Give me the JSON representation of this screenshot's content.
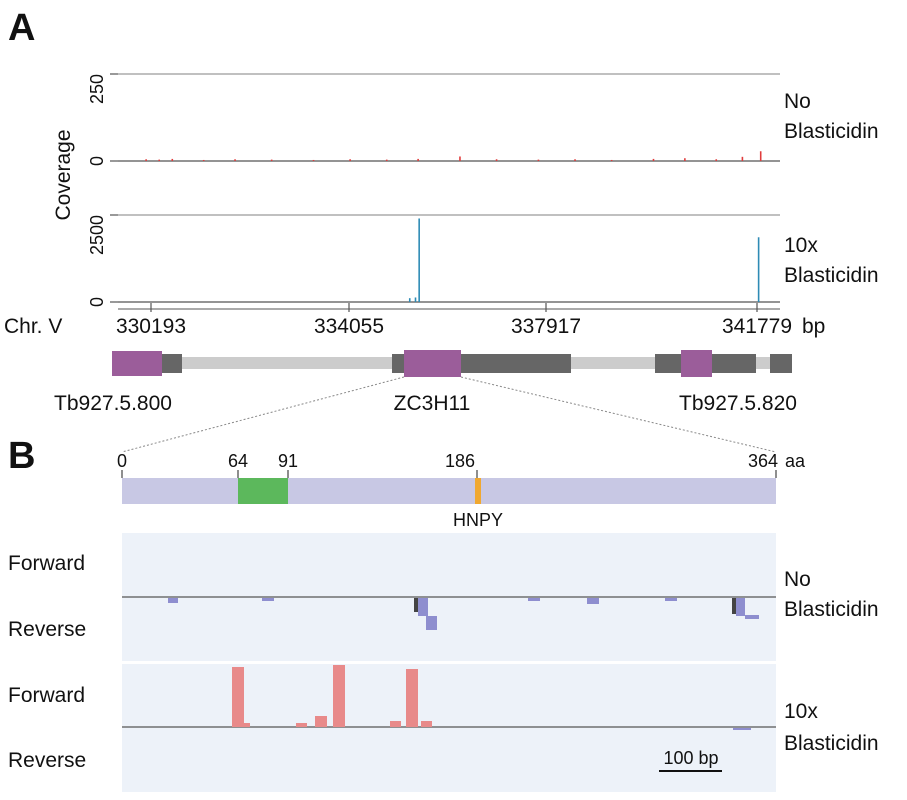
{
  "panel_a": {
    "letter": "A",
    "y_axis_label": "Coverage",
    "track_top": {
      "ymax_label": "250",
      "ymin_label": "0",
      "condition": [
        "No",
        "Blasticidin"
      ],
      "color": "#e03c3c",
      "ylim": [
        0,
        250
      ],
      "peaks": [
        {
          "x": 330100,
          "y": 5
        },
        {
          "x": 330350,
          "y": 4
        },
        {
          "x": 330600,
          "y": 6
        },
        {
          "x": 331200,
          "y": 3
        },
        {
          "x": 331800,
          "y": 5
        },
        {
          "x": 332500,
          "y": 4
        },
        {
          "x": 333300,
          "y": 3
        },
        {
          "x": 334000,
          "y": 5
        },
        {
          "x": 334700,
          "y": 4
        },
        {
          "x": 335300,
          "y": 6
        },
        {
          "x": 336100,
          "y": 13
        },
        {
          "x": 336800,
          "y": 5
        },
        {
          "x": 337600,
          "y": 4
        },
        {
          "x": 338300,
          "y": 5
        },
        {
          "x": 339000,
          "y": 3
        },
        {
          "x": 339800,
          "y": 6
        },
        {
          "x": 340400,
          "y": 8
        },
        {
          "x": 341000,
          "y": 5
        },
        {
          "x": 341500,
          "y": 12
        },
        {
          "x": 341850,
          "y": 28
        }
      ]
    },
    "track_bottom": {
      "ymax_label": "2500",
      "ymin_label": "0",
      "condition": [
        "10x",
        "Blasticidin"
      ],
      "color": "#2e8bb5",
      "ylim": [
        0,
        2500
      ],
      "peaks": [
        {
          "x": 335140,
          "y": 110
        },
        {
          "x": 335250,
          "y": 130
        },
        {
          "x": 335320,
          "y": 2400
        },
        {
          "x": 341810,
          "y": 1860
        }
      ]
    },
    "x_axis": {
      "chr_label": "Chr. V",
      "ticks": [
        "330193",
        "334055",
        "337917",
        "341779"
      ],
      "unit": "bp"
    },
    "genes": [
      {
        "name": "Tb927.5.800"
      },
      {
        "name": "ZC3H11"
      },
      {
        "name": "Tb927.5.820"
      }
    ],
    "gene_colors": {
      "cds": "#9b5d9a",
      "utr": "#666666",
      "intergenic": "#cccccc"
    }
  },
  "panel_b": {
    "letter": "B",
    "protein_ticks": [
      "0",
      "64",
      "91",
      "186",
      "364"
    ],
    "protein_unit": "aa",
    "protein_length": 364,
    "domains": [
      {
        "start": 64,
        "end": 91,
        "color": "#5cb85c"
      },
      {
        "start": 186,
        "end": 189,
        "color": "#f0a830"
      }
    ],
    "motif_label": "HNPY",
    "protein_color": "#c8c8e4",
    "tracks": [
      {
        "forward_label": "Forward",
        "reverse_label": "Reverse",
        "condition": [
          "No",
          "Blasticidin"
        ],
        "color": "#8e8ecf"
      },
      {
        "forward_label": "Forward",
        "reverse_label": "Reverse",
        "condition": [
          "10x",
          "Blasticidin"
        ],
        "color": "#e88a8a"
      }
    ],
    "scale_bar_label": "100 bp"
  }
}
